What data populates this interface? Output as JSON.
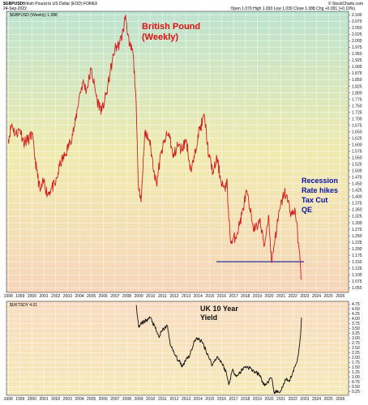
{
  "header": {
    "symbol": "$GBPUSD",
    "description": "British Pound to US Dollar (EOD) FOREX",
    "date": "24-Sep-2022",
    "ohlc": "Open 1.079  High 1.093  Low 1.039  Close 1.088  Chg +0.001 (+0.10%)",
    "source": "© StockCharts.com"
  },
  "chart_data": [
    {
      "type": "line",
      "legend": "$GBPUSD (Weekly) 1.088",
      "annotations": [
        "British Pound",
        "(Weekly)",
        "Recession",
        "Rate hikes",
        "Tax Cut",
        "QE"
      ],
      "x_ticks": [
        "1998",
        "1999",
        "2000",
        "2001",
        "2002",
        "2003",
        "2004",
        "2005",
        "2006",
        "2007",
        "2008",
        "2009",
        "2010",
        "2011",
        "2012",
        "2013",
        "2014",
        "2015",
        "2016",
        "2017",
        "2018",
        "2019",
        "2020",
        "2021",
        "2022",
        "2023",
        "2024",
        "2025",
        "2026"
      ],
      "y_ticks": [
        "1.050",
        "1.075",
        "1.100",
        "1.125",
        "1.150",
        "1.175",
        "1.200",
        "1.225",
        "1.250",
        "1.275",
        "1.300",
        "1.325",
        "1.350",
        "1.375",
        "1.400",
        "1.425",
        "1.450",
        "1.475",
        "1.500",
        "1.525",
        "1.550",
        "1.575",
        "1.600",
        "1.625",
        "1.650",
        "1.675",
        "1.700",
        "1.725",
        "1.750",
        "1.775",
        "1.800",
        "1.825",
        "1.850",
        "1.875",
        "1.900",
        "1.925",
        "1.950",
        "1.975",
        "2.000",
        "2.025",
        "2.050",
        "2.075",
        "2.100"
      ],
      "ylim": [
        1.035,
        2.11
      ],
      "support_line": 1.15,
      "series": [
        {
          "name": "$GBPUSD",
          "x": [
            1998.0,
            1998.3,
            1998.6,
            1999.0,
            1999.3,
            1999.7,
            2000.0,
            2000.4,
            2000.7,
            2001.0,
            2001.3,
            2001.6,
            2002.0,
            2002.4,
            2002.8,
            2003.2,
            2003.6,
            2004.0,
            2004.3,
            2004.6,
            2005.0,
            2005.5,
            2005.9,
            2006.3,
            2006.6,
            2007.0,
            2007.4,
            2007.7,
            2007.9,
            2008.2,
            2008.5,
            2008.75,
            2008.95,
            2009.2,
            2009.5,
            2009.9,
            2010.3,
            2010.5,
            2010.9,
            2011.3,
            2011.6,
            2011.9,
            2012.3,
            2012.6,
            2013.0,
            2013.4,
            2013.7,
            2014.0,
            2014.55,
            2014.9,
            2015.3,
            2015.6,
            2015.9,
            2016.3,
            2016.45,
            2016.6,
            2016.8,
            2017.3,
            2017.7,
            2018.1,
            2018.4,
            2018.8,
            2019.2,
            2019.6,
            2019.95,
            2020.2,
            2020.5,
            2020.9,
            2021.3,
            2021.6,
            2021.9,
            2022.2,
            2022.5,
            2022.65,
            2022.73
          ],
          "values": [
            1.62,
            1.68,
            1.64,
            1.66,
            1.61,
            1.62,
            1.64,
            1.5,
            1.42,
            1.46,
            1.41,
            1.43,
            1.45,
            1.53,
            1.56,
            1.61,
            1.67,
            1.79,
            1.84,
            1.81,
            1.89,
            1.77,
            1.73,
            1.8,
            1.88,
            1.97,
            1.99,
            2.04,
            2.1,
            1.98,
            1.96,
            1.8,
            1.47,
            1.38,
            1.64,
            1.62,
            1.5,
            1.45,
            1.57,
            1.63,
            1.64,
            1.55,
            1.6,
            1.58,
            1.62,
            1.5,
            1.55,
            1.64,
            1.71,
            1.56,
            1.49,
            1.55,
            1.47,
            1.42,
            1.47,
            1.31,
            1.22,
            1.26,
            1.33,
            1.42,
            1.34,
            1.27,
            1.31,
            1.21,
            1.33,
            1.15,
            1.24,
            1.35,
            1.42,
            1.38,
            1.33,
            1.35,
            1.21,
            1.13,
            1.08
          ]
        }
      ]
    },
    {
      "type": "line",
      "legend": "$UKTSDY 4.01",
      "annotations": [
        "UK 10 Year",
        "Yield"
      ],
      "x_ticks": [
        "1998",
        "1999",
        "2000",
        "2001",
        "2002",
        "2003",
        "2004",
        "2005",
        "2006",
        "2007",
        "2008",
        "2009",
        "2010",
        "2011",
        "2012",
        "2013",
        "2014",
        "2015",
        "2016",
        "2017",
        "2018",
        "2019",
        "2020",
        "2021",
        "2022",
        "2023",
        "2024",
        "2025",
        "2026"
      ],
      "y_ticks": [
        "0.25",
        "0.50",
        "0.75",
        "1.00",
        "1.25",
        "1.50",
        "1.75",
        "2.00",
        "2.25",
        "2.50",
        "2.75",
        "3.00",
        "3.25",
        "3.50",
        "3.75",
        "4.00",
        "4.25",
        "4.50",
        "4.75"
      ],
      "ylim": [
        0.1,
        4.85
      ],
      "series": [
        {
          "name": "$UKTSDY",
          "x": [
            2008.8,
            2009.0,
            2009.3,
            2009.6,
            2010.0,
            2010.4,
            2010.7,
            2011.0,
            2011.4,
            2011.7,
            2012.0,
            2012.4,
            2012.7,
            2013.0,
            2013.3,
            2013.7,
            2014.0,
            2014.4,
            2014.8,
            2015.2,
            2015.6,
            2016.0,
            2016.4,
            2016.6,
            2016.9,
            2017.3,
            2017.7,
            2018.0,
            2018.4,
            2018.8,
            2019.2,
            2019.6,
            2019.9,
            2020.2,
            2020.4,
            2020.7,
            2021.0,
            2021.4,
            2021.7,
            2022.0,
            2022.3,
            2022.5,
            2022.65,
            2022.73
          ],
          "values": [
            4.7,
            3.55,
            3.8,
            3.9,
            4.05,
            3.5,
            3.05,
            3.4,
            3.65,
            2.6,
            2.2,
            1.8,
            1.55,
            1.95,
            2.1,
            2.85,
            3.0,
            2.75,
            2.2,
            1.6,
            2.05,
            1.75,
            1.2,
            0.6,
            1.35,
            1.05,
            1.35,
            1.55,
            1.45,
            1.25,
            1.1,
            0.55,
            0.75,
            0.95,
            0.25,
            0.2,
            0.3,
            0.85,
            0.75,
            1.25,
            1.7,
            2.3,
            3.1,
            4.05
          ]
        }
      ]
    }
  ]
}
